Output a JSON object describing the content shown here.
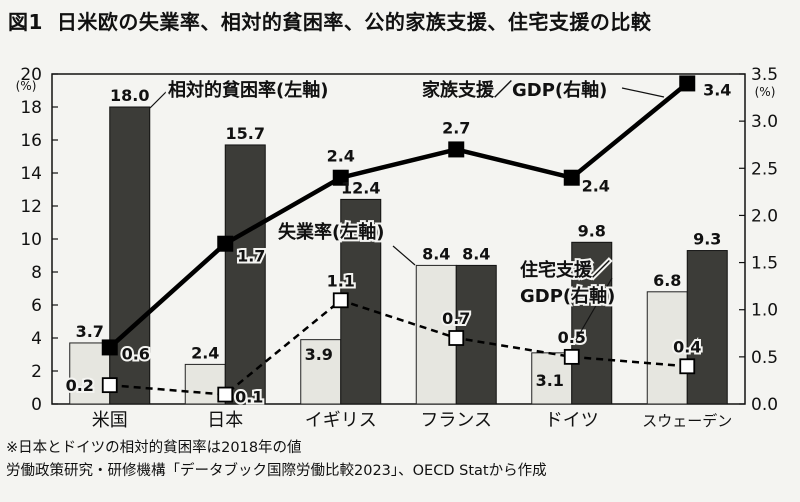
{
  "figure_label": "図1",
  "title": "日米欧の失業率、相対的貧困率、公的家族支援、住宅支援の比較",
  "chart_data": {
    "type": "bar",
    "categories": [
      "米国",
      "日本",
      "イギリス",
      "フランス",
      "ドイツ",
      "スウェーデン"
    ],
    "left_axis": {
      "unit": "(%)",
      "ylim": [
        0,
        20
      ],
      "ticks": [
        0,
        2,
        4,
        6,
        8,
        10,
        12,
        14,
        16,
        18,
        20
      ]
    },
    "right_axis": {
      "unit": "(%)",
      "ylim": [
        0,
        3.5
      ],
      "ticks": [
        "0.0",
        "0.5",
        "1.0",
        "1.5",
        "2.0",
        "2.5",
        "3.0",
        "3.5"
      ]
    },
    "series": [
      {
        "name": "失業率(左軸)",
        "type": "bar",
        "axis": "left",
        "color": "#e6e6e0",
        "values": [
          3.7,
          2.4,
          3.9,
          8.4,
          3.1,
          6.8
        ],
        "labels": [
          "3.7",
          "2.4",
          "3.9",
          "8.4",
          "3.1",
          "6.8"
        ]
      },
      {
        "name": "相対的貧困率(左軸)",
        "type": "bar",
        "axis": "left",
        "color": "#3c3c38",
        "values": [
          18.0,
          15.7,
          12.4,
          8.4,
          9.8,
          9.3
        ],
        "labels": [
          "18.0",
          "15.7",
          "12.4",
          "8.4",
          "9.8",
          "9.3"
        ]
      },
      {
        "name": "家族支援／GDP(右軸)",
        "type": "line",
        "axis": "right",
        "style": "solid",
        "marker": "filled-square",
        "values": [
          0.6,
          1.7,
          2.4,
          2.7,
          2.4,
          3.4
        ],
        "labels": [
          "0.6",
          "1.7",
          "2.4",
          "2.7",
          "2.4",
          "3.4"
        ]
      },
      {
        "name": "住宅支援／GDP(右軸)",
        "type": "line",
        "axis": "right",
        "style": "dashed",
        "marker": "open-square",
        "values": [
          0.2,
          0.1,
          1.1,
          0.7,
          0.5,
          0.4
        ],
        "labels": [
          "0.2",
          "0.1",
          "1.1",
          "0.7",
          "0.5",
          "0.4"
        ]
      }
    ],
    "annotations": {
      "poverty": "相対的貧困率(左軸)",
      "family": "家族支援／GDP(右軸)",
      "unemployment": "失業率(左軸)",
      "housing_line1": "住宅支援／",
      "housing_line2": "GDP(右軸)"
    },
    "grid": false
  },
  "notes": [
    "※日本とドイツの相対的貧困率は2018年の値",
    "労働政策研究・研修機構「データブック国際労働比較2023」、OECD Statから作成"
  ]
}
